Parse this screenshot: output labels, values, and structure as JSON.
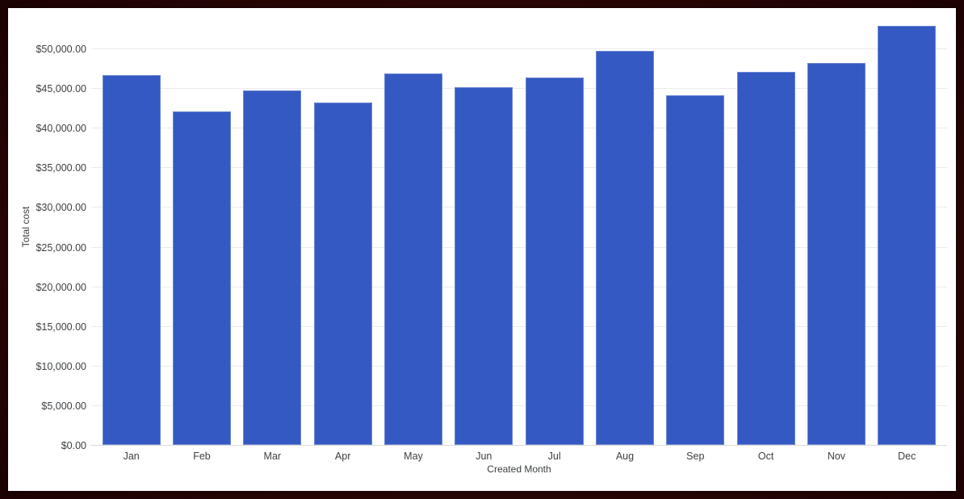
{
  "window": {
    "frame_border_color": "#250404",
    "panel_background": "#ffffff"
  },
  "chart_data": {
    "type": "bar",
    "title": "",
    "xlabel": "Created Month",
    "ylabel": "Total cost",
    "categories": [
      "Jan",
      "Feb",
      "Mar",
      "Apr",
      "May",
      "Jun",
      "Jul",
      "Aug",
      "Sep",
      "Oct",
      "Nov",
      "Dec"
    ],
    "series": [
      {
        "name": "Total cost",
        "values": [
          46650,
          42100,
          44700,
          43150,
          46850,
          45150,
          46300,
          49750,
          44050,
          47050,
          48150,
          52900
        ]
      }
    ],
    "value_format": "$#,##0.00",
    "ylim": [
      0,
      55200
    ],
    "yticks": [
      {
        "value": 0,
        "label": "$0.00"
      },
      {
        "value": 5000,
        "label": "$5,000.00"
      },
      {
        "value": 10000,
        "label": "$10,000.00"
      },
      {
        "value": 15000,
        "label": "$15,000.00"
      },
      {
        "value": 20000,
        "label": "$20,000.00"
      },
      {
        "value": 25000,
        "label": "$25,000.00"
      },
      {
        "value": 30000,
        "label": "$30,000.00"
      },
      {
        "value": 35000,
        "label": "$35,000.00"
      },
      {
        "value": 40000,
        "label": "$40,000.00"
      },
      {
        "value": 45000,
        "label": "$45,000.00"
      },
      {
        "value": 50000,
        "label": "$50,000.00"
      }
    ],
    "grid": true,
    "legend_position": "none",
    "bar_color": "#3459c2",
    "gridline_color": "#ebebeb",
    "baseline_color": "#d8d8d8",
    "tick_text_color": "#3c4043"
  }
}
